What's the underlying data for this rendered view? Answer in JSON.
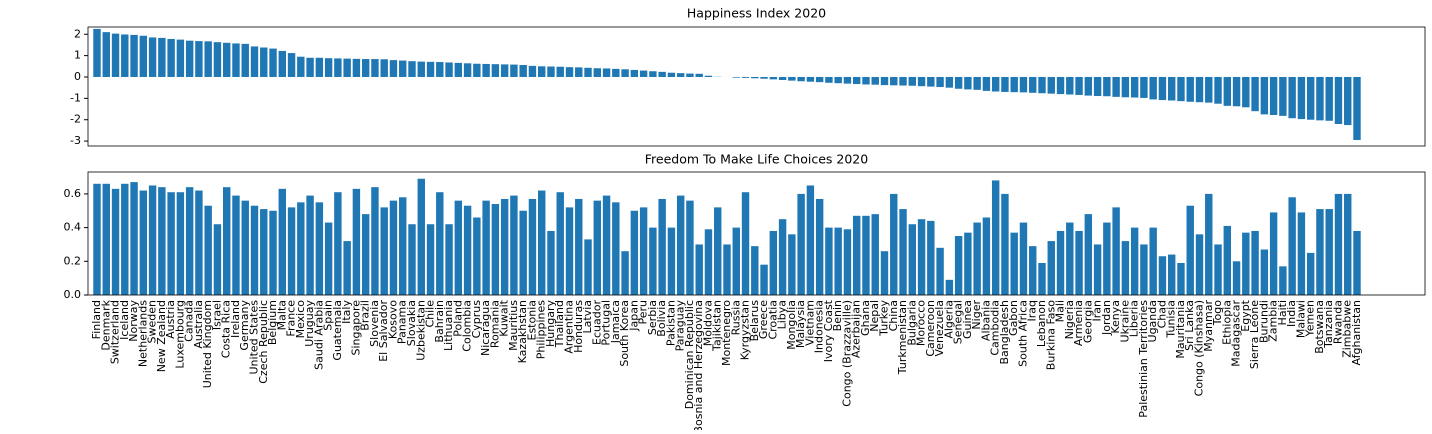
{
  "chart_data": [
    {
      "type": "bar",
      "title": "Happiness Index 2020",
      "color": "#1f77b4",
      "values": [
        2.25,
        2.1,
        2.03,
        1.99,
        1.97,
        1.93,
        1.85,
        1.83,
        1.78,
        1.75,
        1.7,
        1.68,
        1.67,
        1.63,
        1.6,
        1.57,
        1.55,
        1.43,
        1.38,
        1.33,
        1.22,
        1.12,
        0.95,
        0.9,
        0.9,
        0.88,
        0.87,
        0.86,
        0.85,
        0.84,
        0.84,
        0.83,
        0.79,
        0.77,
        0.74,
        0.72,
        0.71,
        0.7,
        0.68,
        0.66,
        0.64,
        0.62,
        0.61,
        0.6,
        0.59,
        0.58,
        0.56,
        0.52,
        0.5,
        0.49,
        0.48,
        0.46,
        0.45,
        0.43,
        0.41,
        0.4,
        0.38,
        0.36,
        0.33,
        0.3,
        0.27,
        0.24,
        0.2,
        0.18,
        0.16,
        0.15,
        0.06,
        0.01,
        0.0,
        -0.03,
        -0.04,
        -0.06,
        -0.08,
        -0.11,
        -0.14,
        -0.17,
        -0.2,
        -0.22,
        -0.24,
        -0.27,
        -0.29,
        -0.31,
        -0.33,
        -0.35,
        -0.36,
        -0.38,
        -0.39,
        -0.4,
        -0.41,
        -0.43,
        -0.45,
        -0.47,
        -0.5,
        -0.55,
        -0.58,
        -0.6,
        -0.65,
        -0.68,
        -0.7,
        -0.71,
        -0.72,
        -0.74,
        -0.76,
        -0.78,
        -0.8,
        -0.82,
        -0.84,
        -0.87,
        -0.89,
        -0.9,
        -0.93,
        -0.95,
        -0.96,
        -0.98,
        -1.05,
        -1.08,
        -1.1,
        -1.13,
        -1.16,
        -1.18,
        -1.2,
        -1.25,
        -1.35,
        -1.37,
        -1.42,
        -1.6,
        -1.75,
        -1.78,
        -1.82,
        -1.93,
        -1.97,
        -2.0,
        -2.03,
        -2.05,
        -2.2,
        -2.25,
        -2.95
      ],
      "ylim": [
        -3.23,
        2.34
      ],
      "yticks": [
        -3,
        -2,
        -1,
        0,
        1,
        2
      ]
    },
    {
      "type": "bar",
      "title": "Freedom To Make Life Choices 2020",
      "color": "#1f77b4",
      "categories": [
        "Finland",
        "Denmark",
        "Switzerland",
        "Iceland",
        "Norway",
        "Netherlands",
        "Sweden",
        "New Zealand",
        "Austria",
        "Luxembourg",
        "Canada",
        "Australia",
        "United Kingdom",
        "Israel",
        "Costa Rica",
        "Ireland",
        "Germany",
        "United States",
        "Czech Republic",
        "Belgium",
        "Malta",
        "France",
        "Mexico",
        "Uruguay",
        "Saudi Arabia",
        "Spain",
        "Guatemala",
        "Italy",
        "Singapore",
        "Brazil",
        "Slovenia",
        "El Salvador",
        "Kosovo",
        "Panama",
        "Slovakia",
        "Uzbekistan",
        "Chile",
        "Bahrain",
        "Lithuania",
        "Poland",
        "Colombia",
        "Cyprus",
        "Nicaragua",
        "Romania",
        "Kuwait",
        "Mauritius",
        "Kazakhstan",
        "Estonia",
        "Philippines",
        "Hungary",
        "Thailand",
        "Argentina",
        "Honduras",
        "Latvia",
        "Ecuador",
        "Portugal",
        "Jamaica",
        "South Korea",
        "Japan",
        "Peru",
        "Serbia",
        "Bolivia",
        "Pakistan",
        "Paraguay",
        "Dominican Republic",
        "Bosnia and Herzegovina",
        "Moldova",
        "Tajikistan",
        "Montenegro",
        "Russia",
        "Kyrgyzstan",
        "Belarus",
        "Greece",
        "Croatia",
        "Libya",
        "Mongolia",
        "Malaysia",
        "Vietnam",
        "Indonesia",
        "Ivory Coast",
        "Benin",
        "Congo (Brazzaville)",
        "Azerbaijan",
        "Ghana",
        "Nepal",
        "Turkey",
        "China",
        "Turkmenistan",
        "Bulgaria",
        "Morocco",
        "Cameroon",
        "Venezuela",
        "Algeria",
        "Senegal",
        "Guinea",
        "Niger",
        "Albania",
        "Cambodia",
        "Bangladesh",
        "Gabon",
        "South Africa",
        "Iraq",
        "Lebanon",
        "Burkina Faso",
        "Mali",
        "Nigeria",
        "Armenia",
        "Georgia",
        "Iran",
        "Jordan",
        "Kenya",
        "Ukraine",
        "Liberia",
        "Palestinian Territories",
        "Uganda",
        "Chad",
        "Tunisia",
        "Mauritania",
        "Sri Lanka",
        "Congo (Kinshasa)",
        "Myanmar",
        "Togo",
        "Ethiopia",
        "Madagascar",
        "Egypt",
        "Sierra Leone",
        "Burundi",
        "Zambia",
        "Haiti",
        "India",
        "Malawi",
        "Yemen",
        "Botswana",
        "Tanzania",
        "Rwanda",
        "Zimbabwe",
        "Afghanistan"
      ],
      "values": [
        0.66,
        0.66,
        0.63,
        0.66,
        0.67,
        0.62,
        0.65,
        0.64,
        0.61,
        0.61,
        0.64,
        0.62,
        0.53,
        0.42,
        0.64,
        0.59,
        0.56,
        0.53,
        0.51,
        0.5,
        0.63,
        0.52,
        0.55,
        0.59,
        0.55,
        0.43,
        0.61,
        0.32,
        0.63,
        0.48,
        0.64,
        0.52,
        0.56,
        0.58,
        0.42,
        0.69,
        0.42,
        0.61,
        0.42,
        0.56,
        0.53,
        0.46,
        0.56,
        0.54,
        0.57,
        0.59,
        0.5,
        0.57,
        0.62,
        0.38,
        0.61,
        0.52,
        0.57,
        0.33,
        0.56,
        0.59,
        0.55,
        0.26,
        0.5,
        0.52,
        0.4,
        0.57,
        0.4,
        0.59,
        0.56,
        0.3,
        0.39,
        0.52,
        0.3,
        0.4,
        0.61,
        0.29,
        0.18,
        0.38,
        0.45,
        0.36,
        0.6,
        0.65,
        0.57,
        0.4,
        0.4,
        0.39,
        0.47,
        0.47,
        0.48,
        0.26,
        0.6,
        0.51,
        0.42,
        0.45,
        0.44,
        0.28,
        0.09,
        0.35,
        0.37,
        0.43,
        0.46,
        0.68,
        0.6,
        0.37,
        0.43,
        0.29,
        0.19,
        0.32,
        0.38,
        0.43,
        0.38,
        0.48,
        0.3,
        0.43,
        0.52,
        0.32,
        0.4,
        0.3,
        0.4,
        0.23,
        0.24,
        0.19,
        0.53,
        0.36,
        0.6,
        0.3,
        0.41,
        0.2,
        0.37,
        0.38,
        0.27,
        0.49,
        0.17,
        0.58,
        0.49,
        0.25,
        0.51,
        0.51,
        0.6,
        0.6,
        0.38
      ],
      "ylim": [
        0,
        0.73
      ],
      "yticks": [
        {
          "value": 0,
          "label": "0.0"
        },
        0.2,
        0.4,
        0.6
      ]
    }
  ]
}
